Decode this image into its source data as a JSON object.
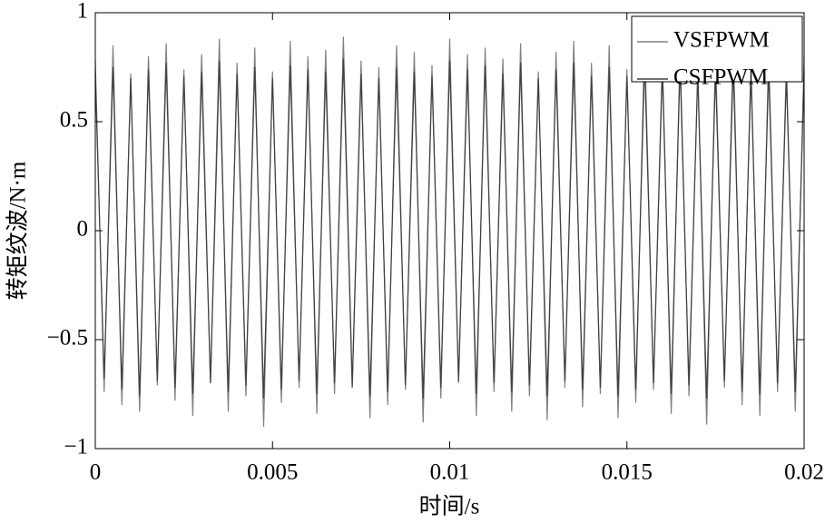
{
  "chart_data": {
    "type": "line",
    "xlabel": "时间/s",
    "ylabel": "转矩纹波/N·m",
    "xlim": [
      0,
      0.02
    ],
    "xticks": [
      0,
      0.005,
      0.01,
      0.015,
      0.02
    ],
    "ylim": [
      -1,
      1
    ],
    "yticks": [
      {
        "value": -1,
        "label": "−1"
      },
      {
        "value": -0.5,
        "label": "−0.5"
      },
      0,
      0.5,
      1
    ],
    "legend": "upper right",
    "x": [
      0,
      0.00025,
      0.0005,
      0.00075,
      0.001,
      0.00125,
      0.0015,
      0.00175,
      0.002,
      0.00225,
      0.0025,
      0.00275,
      0.003,
      0.00325,
      0.0035,
      0.00375,
      0.004,
      0.00425,
      0.0045,
      0.00475,
      0.005,
      0.00525,
      0.0055,
      0.00575,
      0.006,
      0.00625,
      0.0065,
      0.00675,
      0.007,
      0.00725,
      0.0075,
      0.00775,
      0.008,
      0.00825,
      0.0085,
      0.00875,
      0.009,
      0.00925,
      0.0095,
      0.00975,
      0.01,
      0.01025,
      0.0105,
      0.01075,
      0.011,
      0.01125,
      0.0115,
      0.01175,
      0.012,
      0.01225,
      0.0125,
      0.01275,
      0.013,
      0.01325,
      0.0135,
      0.01375,
      0.014,
      0.01425,
      0.0145,
      0.01475,
      0.015,
      0.01525,
      0.0155,
      0.01575,
      0.016,
      0.01625,
      0.0165,
      0.01675,
      0.017,
      0.01725,
      0.0175,
      0.01775,
      0.018,
      0.01825,
      0.0185,
      0.01875,
      0.019,
      0.01925,
      0.0195,
      0.01975,
      0.02
    ],
    "series": [
      {
        "name": "VSFPWM",
        "color": "#808080",
        "values": [
          0.78,
          -0.74,
          0.85,
          -0.8,
          0.72,
          -0.83,
          0.8,
          -0.71,
          0.86,
          -0.78,
          0.74,
          -0.85,
          0.81,
          -0.7,
          0.88,
          -0.83,
          0.77,
          -0.76,
          0.84,
          -0.9,
          0.73,
          -0.79,
          0.87,
          -0.72,
          0.8,
          -0.84,
          0.83,
          -0.75,
          0.89,
          -0.71,
          0.78,
          -0.86,
          0.75,
          -0.8,
          0.85,
          -0.73,
          0.82,
          -0.88,
          0.76,
          -0.77,
          0.88,
          -0.7,
          0.81,
          -0.85,
          0.84,
          -0.74,
          0.79,
          -0.83,
          0.86,
          -0.76,
          0.73,
          -0.87,
          0.82,
          -0.72,
          0.87,
          -0.81,
          0.77,
          -0.75,
          0.85,
          -0.86,
          0.74,
          -0.79,
          0.88,
          -0.73,
          0.8,
          -0.84,
          0.83,
          -0.76,
          0.75,
          -0.89,
          0.81,
          -0.72,
          0.86,
          -0.8,
          0.78,
          -0.85,
          0.82,
          -0.74,
          0.77,
          -0.83,
          0.8
        ]
      },
      {
        "name": "CSFPWM",
        "color": "#404040",
        "values": [
          0.72,
          -0.68,
          0.75,
          -0.73,
          0.7,
          -0.76,
          0.74,
          -0.69,
          0.77,
          -0.72,
          0.71,
          -0.75,
          0.73,
          -0.7,
          0.78,
          -0.74,
          0.72,
          -0.71,
          0.75,
          -0.77,
          0.7,
          -0.73,
          0.76,
          -0.69,
          0.74,
          -0.75,
          0.73,
          -0.7,
          0.79,
          -0.72,
          0.72,
          -0.76,
          0.7,
          -0.74,
          0.75,
          -0.71,
          0.73,
          -0.77,
          0.71,
          -0.72,
          0.78,
          -0.69,
          0.74,
          -0.75,
          0.76,
          -0.7,
          0.72,
          -0.74,
          0.77,
          -0.71,
          0.7,
          -0.76,
          0.74,
          -0.69,
          0.77,
          -0.73,
          0.71,
          -0.72,
          0.75,
          -0.76,
          0.71,
          -0.73,
          0.78,
          -0.7,
          0.74,
          -0.75,
          0.76,
          -0.71,
          0.72,
          -0.77,
          0.73,
          -0.69,
          0.76,
          -0.74,
          0.72,
          -0.75,
          0.74,
          -0.7,
          0.71,
          -0.74,
          0.73
        ]
      }
    ]
  }
}
